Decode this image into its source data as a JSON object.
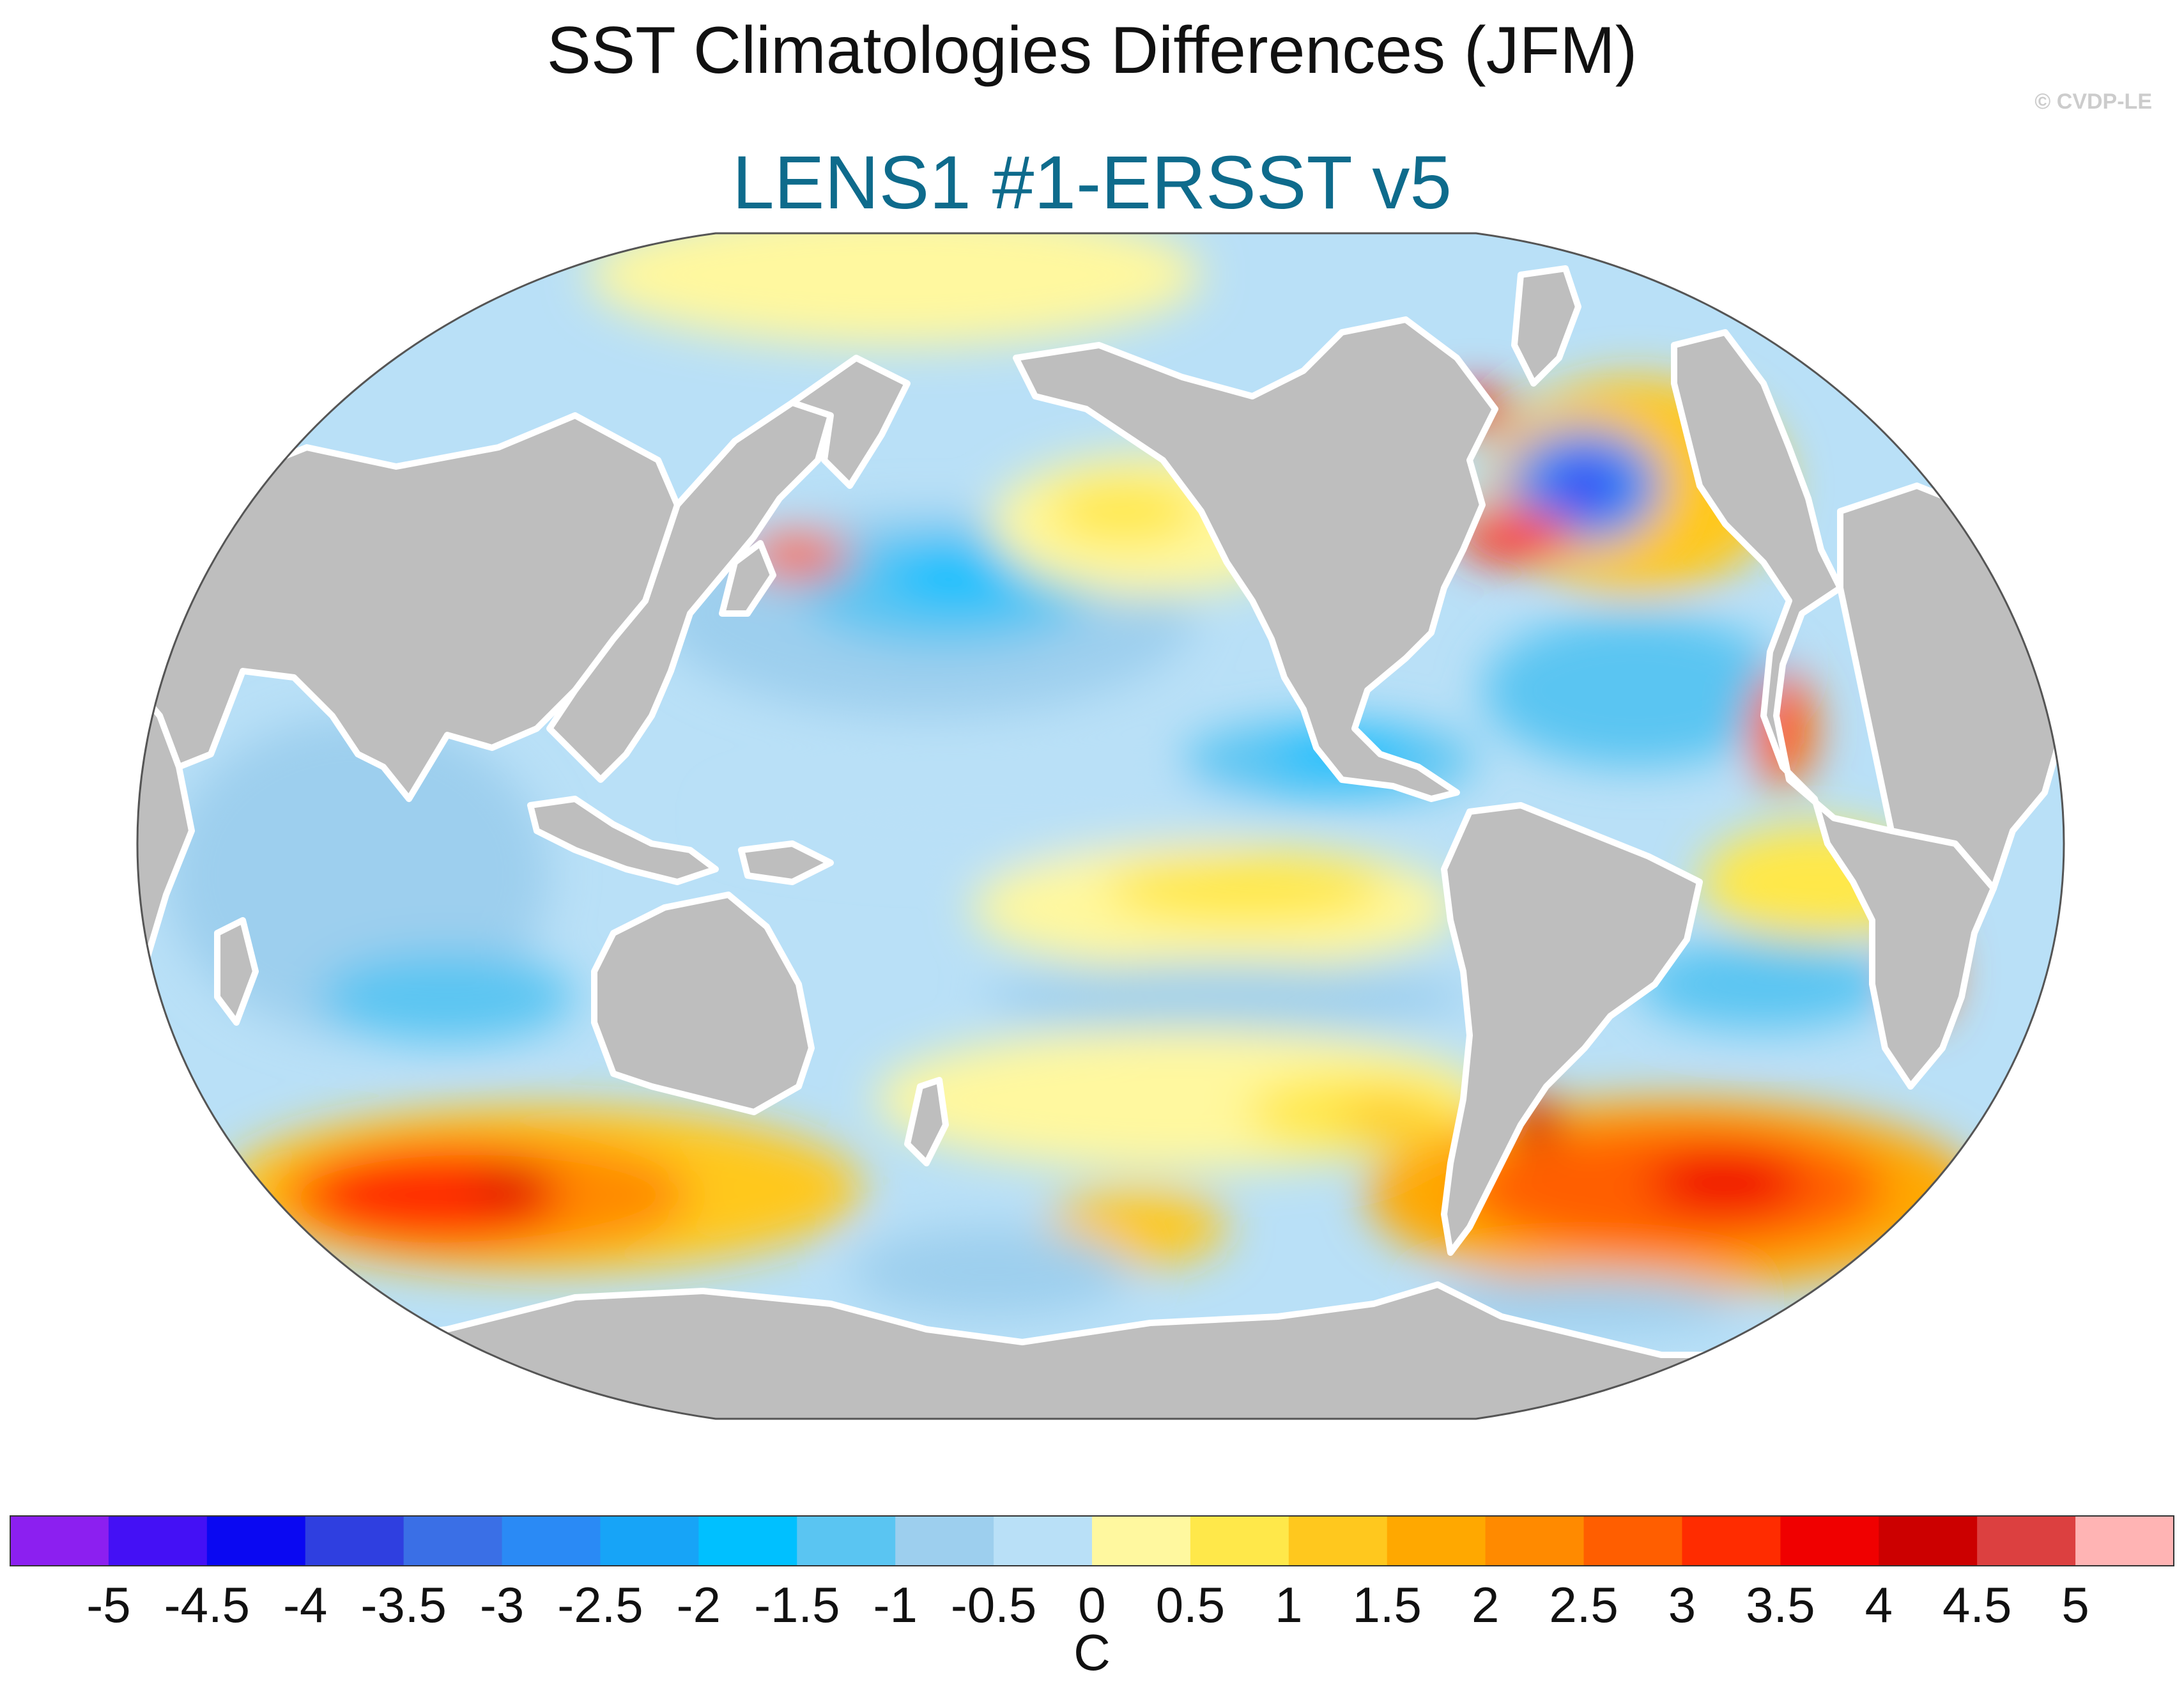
{
  "title": "SST Climatologies Differences (JFM)",
  "subtitle": "LENS1 #1-ERSST v5",
  "watermark": "© CVDP-LE",
  "colors": {
    "land": "#bebebe",
    "ocean_missing": "#ffffff",
    "subtitle": "#0e6b8c"
  },
  "colorbar": {
    "units": "C",
    "tick_labels": [
      "-5",
      "-4.5",
      "-4",
      "-3.5",
      "-3",
      "-2.5",
      "-2",
      "-1.5",
      "-1",
      "-0.5",
      "0",
      "0.5",
      "1",
      "1.5",
      "2",
      "2.5",
      "3",
      "3.5",
      "4",
      "4.5",
      "5"
    ],
    "colors": [
      "#8c1ff0",
      "#4410f5",
      "#0a08f2",
      "#2f3fe0",
      "#3a6fe6",
      "#2a8af5",
      "#17a4f7",
      "#00c0ff",
      "#5ac5f2",
      "#9dcfee",
      "#b9e0f7",
      "#fff89f",
      "#ffe84a",
      "#ffc81e",
      "#ffa800",
      "#ff8a00",
      "#ff5e00",
      "#ff2c00",
      "#f00000",
      "#cc0000",
      "#dc4040",
      "#ffb4b4"
    ]
  }
}
